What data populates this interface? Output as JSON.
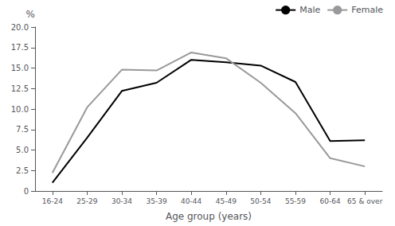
{
  "chart_data": {
    "type": "line",
    "xlabel": "Age group (years)",
    "ylabel": "%",
    "categories": [
      "16-24",
      "25-29",
      "30-34",
      "35-39",
      "40-44",
      "45-49",
      "50-54",
      "55-59",
      "60-64",
      "65 & over"
    ],
    "series": [
      {
        "name": "Male",
        "color": "#000000",
        "values": [
          1.0,
          6.5,
          12.2,
          13.2,
          16.0,
          15.7,
          15.3,
          13.3,
          6.1,
          6.2
        ]
      },
      {
        "name": "Female",
        "color": "#999999",
        "values": [
          2.2,
          10.2,
          14.8,
          14.7,
          16.9,
          16.2,
          13.2,
          9.5,
          4.0,
          3.0
        ]
      }
    ],
    "ylim": [
      0,
      20.0
    ],
    "yticks": [
      0,
      2.5,
      {
        "value": 5.0,
        "label": "5.0"
      },
      7.5,
      {
        "value": 10.0,
        "label": "10.0"
      },
      12.5,
      {
        "value": 15.0,
        "label": "15.0"
      },
      17.5,
      {
        "value": 20.0,
        "label": "20.0"
      }
    ],
    "grid": false,
    "legend": "upper right"
  }
}
